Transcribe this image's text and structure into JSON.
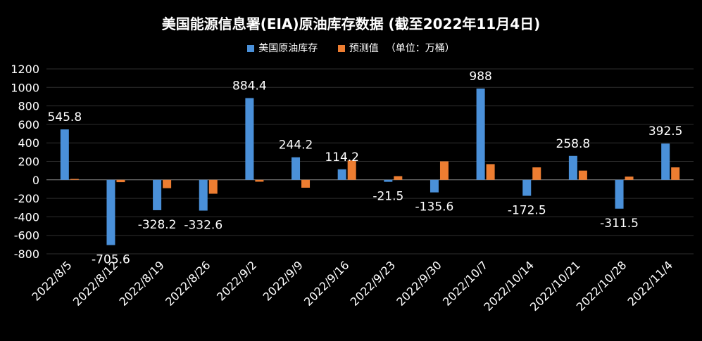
{
  "chart_data": {
    "type": "bar",
    "title": "美国能源信息署(EIA)原油库存数据 (截至2022年11月4日)",
    "unit_note": "（单位：万桶）",
    "categories": [
      "2022/8/5",
      "2022/8/12",
      "2022/8/19",
      "2022/8/26",
      "2022/9/2",
      "2022/9/9",
      "2022/9/16",
      "2022/9/23",
      "2022/9/30",
      "2022/10/7",
      "2022/10/14",
      "2022/10/21",
      "2022/10/28",
      "2022/11/4"
    ],
    "series": [
      {
        "name": "美国原油库存",
        "color": "#4a90d9",
        "values": [
          545.8,
          -705.6,
          -328.2,
          -332.6,
          884.4,
          244.2,
          114.2,
          -21.5,
          -135.6,
          988,
          -172.5,
          258.8,
          -311.5,
          392.5
        ]
      },
      {
        "name": "预测值",
        "color": "#ed7d31",
        "values": [
          10,
          -25,
          -90,
          -150,
          -20,
          -85,
          210,
          40,
          200,
          170,
          135,
          100,
          35,
          135
        ]
      }
    ],
    "data_labels": [
      "545.8",
      "-705.6",
      "-328.2",
      "-332.6",
      "884.4",
      "244.2",
      "114.2",
      "-21.5",
      "-135.6",
      "988",
      "-172.5",
      "258.8",
      "-311.5",
      "392.5"
    ],
    "ylim": [
      -800,
      1200
    ],
    "yticks": [
      -800,
      -600,
      -400,
      -200,
      0,
      200,
      400,
      600,
      800,
      1000,
      1200
    ],
    "grid": true,
    "legend_position": "top-center"
  }
}
